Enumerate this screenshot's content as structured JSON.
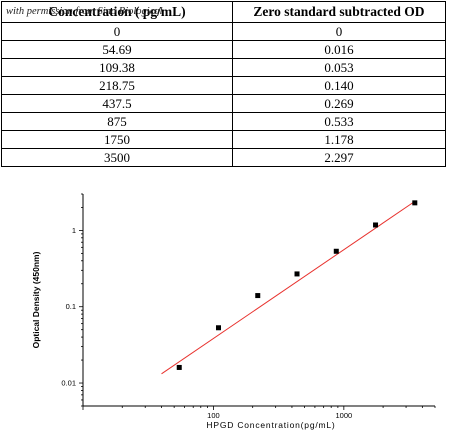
{
  "watermark": "with permission from Sino Biological",
  "table": {
    "headers": [
      "Concentration ( pg/mL)",
      "Zero standard subtracted OD"
    ],
    "rows": [
      [
        "0",
        "0"
      ],
      [
        "54.69",
        "0.016"
      ],
      [
        "109.38",
        "0.053"
      ],
      [
        "218.75",
        "0.140"
      ],
      [
        "437.5",
        "0.269"
      ],
      [
        "875",
        "0.533"
      ],
      [
        "1750",
        "1.178"
      ],
      [
        "3500",
        "2.297"
      ]
    ]
  },
  "chart_data": {
    "type": "scatter",
    "xlabel": "HPGD  Concentration(pg/mL)",
    "ylabel": "Optical Density (450nm)",
    "xscale": "log",
    "yscale": "log",
    "xlim": [
      10,
      5000
    ],
    "ylim": [
      0.005,
      3
    ],
    "x_ticks": [
      100,
      1000
    ],
    "x_tick_labels": [
      "100",
      "1000"
    ],
    "y_ticks": [
      0.01,
      0.1,
      1
    ],
    "y_tick_labels": [
      "0.01",
      "0.1",
      "1"
    ],
    "series": [
      {
        "x": [
          54.69,
          109.38,
          218.75,
          437.5,
          875,
          1750,
          3500
        ],
        "y": [
          0.016,
          0.053,
          0.14,
          0.269,
          0.533,
          1.178,
          2.297
        ],
        "marker": "square",
        "color": "#000000"
      }
    ],
    "fit_line": {
      "type": "linear-log-log",
      "color": "#e8322e",
      "x_range": [
        40,
        3500
      ],
      "y_range": [
        0.0132,
        2.4
      ]
    },
    "grid": false,
    "legend": "none"
  }
}
